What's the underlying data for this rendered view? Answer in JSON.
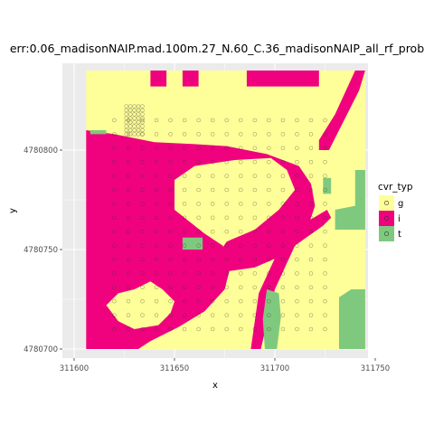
{
  "chart_data": {
    "type": "heatmap",
    "title": "err:0.06_madisonNAIP.mad.100m.27_N.60_C.36_madisonNAIP_all_rf_prob",
    "xlabel": "x",
    "ylabel": "y",
    "xlim": [
      311595,
      311752
    ],
    "ylim": [
      4780695,
      4780735
    ],
    "x_ticks": [
      311600,
      311650,
      311700,
      311750
    ],
    "x_tick_labels": [
      "311600",
      "311650",
      "311700",
      "311750"
    ],
    "y_ticks": [
      4780700,
      4780750,
      4780800
    ],
    "y_tick_labels": [
      "4780700",
      "4780750",
      "4780800"
    ],
    "grid": true,
    "legend": {
      "title": "cvr_typ",
      "position": "right",
      "entries": [
        {
          "label": "g",
          "color": "#ffff99"
        },
        {
          "label": "i",
          "color": "#f0027f"
        },
        {
          "label": "t",
          "color": "#7fc97f"
        }
      ]
    },
    "raster_extent": {
      "x": [
        311606,
        311745
      ],
      "y": [
        4780700,
        4780840
      ]
    },
    "classes": {
      "g": "#ffff99",
      "i": "#f0027f",
      "t": "#7fc97f"
    },
    "regions": [
      {
        "class": "i",
        "polygon": [
          [
            311606,
            4780810
          ],
          [
            311606,
            4780700
          ],
          [
            311632,
            4780700
          ],
          [
            311638,
            4780704
          ],
          [
            311652,
            4780711
          ],
          [
            311665,
            4780719
          ],
          [
            311675,
            4780730
          ],
          [
            311678,
            4780742
          ],
          [
            311674,
            4780752
          ],
          [
            311665,
            4780758
          ],
          [
            311650,
            4780770
          ],
          [
            311650,
            4780785
          ],
          [
            311660,
            4780792
          ],
          [
            311680,
            4780795
          ],
          [
            311698,
            4780796
          ],
          [
            311706,
            4780790
          ],
          [
            311710,
            4780780
          ],
          [
            311702,
            4780770
          ],
          [
            311690,
            4780760
          ],
          [
            311676,
            4780754
          ],
          [
            311672,
            4780748
          ],
          [
            311676,
            4780739
          ],
          [
            311690,
            4780741
          ],
          [
            311706,
            4780748
          ],
          [
            311716,
            4780760
          ],
          [
            311720,
            4780772
          ],
          [
            311718,
            4780783
          ],
          [
            311712,
            4780792
          ],
          [
            311696,
            4780798
          ],
          [
            311676,
            4780802
          ],
          [
            311660,
            4780803
          ],
          [
            311640,
            4780804
          ],
          [
            311620,
            4780808
          ]
        ]
      },
      {
        "class": "g",
        "polygon": [
          [
            311616,
            4780722
          ],
          [
            311622,
            4780714
          ],
          [
            311630,
            4780710
          ],
          [
            311642,
            4780712
          ],
          [
            311648,
            4780718
          ],
          [
            311650,
            4780724
          ],
          [
            311644,
            4780730
          ],
          [
            311638,
            4780734
          ],
          [
            311630,
            4780730
          ],
          [
            311622,
            4780728
          ]
        ]
      },
      {
        "class": "i",
        "polygon": [
          [
            311688,
            4780700
          ],
          [
            311693,
            4780700
          ],
          [
            311700,
            4780730
          ],
          [
            311710,
            4780752
          ],
          [
            311724,
            4780762
          ],
          [
            311728,
            4780766
          ],
          [
            311726,
            4780770
          ],
          [
            311716,
            4780764
          ],
          [
            311702,
            4780750
          ],
          [
            311692,
            4780728
          ]
        ]
      },
      {
        "class": "i",
        "polygon": [
          [
            311727,
            4780800
          ],
          [
            311742,
            4780830
          ],
          [
            311745,
            4780840
          ],
          [
            311740,
            4780840
          ],
          [
            311730,
            4780818
          ],
          [
            311722,
            4780805
          ],
          [
            311722,
            4780800
          ]
        ]
      },
      {
        "class": "i",
        "polygon": [
          [
            311638,
            4780832
          ],
          [
            311646,
            4780832
          ],
          [
            311646,
            4780840
          ],
          [
            311638,
            4780840
          ]
        ]
      },
      {
        "class": "i",
        "polygon": [
          [
            311654,
            4780832
          ],
          [
            311662,
            4780832
          ],
          [
            311662,
            4780840
          ],
          [
            311654,
            4780840
          ]
        ]
      },
      {
        "class": "i",
        "polygon": [
          [
            311686,
            4780832
          ],
          [
            311722,
            4780832
          ],
          [
            311722,
            4780840
          ],
          [
            311686,
            4780840
          ]
        ]
      },
      {
        "class": "t",
        "polygon": [
          [
            311695,
            4780700
          ],
          [
            311701,
            4780700
          ],
          [
            311703,
            4780716
          ],
          [
            311702,
            4780728
          ],
          [
            311696,
            4780730
          ],
          [
            311694,
            4780715
          ]
        ]
      },
      {
        "class": "t",
        "polygon": [
          [
            311732,
            4780700
          ],
          [
            311745,
            4780700
          ],
          [
            311745,
            4780730
          ],
          [
            311738,
            4780730
          ],
          [
            311732,
            4780726
          ]
        ]
      },
      {
        "class": "t",
        "polygon": [
          [
            311742,
            4780760
          ],
          [
            311745,
            4780760
          ],
          [
            311745,
            4780790
          ],
          [
            311740,
            4780790
          ],
          [
            311740,
            4780772
          ],
          [
            311730,
            4780770
          ],
          [
            311730,
            4780760
          ]
        ]
      },
      {
        "class": "t",
        "polygon": [
          [
            311724,
            4780778
          ],
          [
            311728,
            4780778
          ],
          [
            311728,
            4780786
          ],
          [
            311724,
            4780786
          ]
        ]
      },
      {
        "class": "t",
        "polygon": [
          [
            311608,
            4780808
          ],
          [
            311616,
            4780808
          ],
          [
            311616,
            4780810
          ],
          [
            311608,
            4780810
          ]
        ]
      },
      {
        "class": "t",
        "polygon": [
          [
            311654,
            4780750
          ],
          [
            311664,
            4780750
          ],
          [
            311664,
            4780756
          ],
          [
            311654,
            4780756
          ]
        ]
      }
    ]
  }
}
